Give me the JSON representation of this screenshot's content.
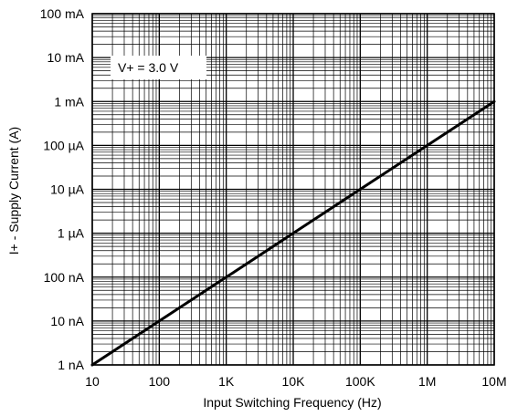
{
  "chart_data": {
    "type": "line",
    "xlabel": "Input Switching Frequency (Hz)",
    "ylabel": "I+ - Supply Current (A)",
    "x_scale": "log",
    "y_scale": "log",
    "xlim": [
      10,
      10000000
    ],
    "ylim": [
      1e-09,
      0.1
    ],
    "grid": true,
    "x_ticks": [
      {
        "value": 10,
        "label": "10"
      },
      {
        "value": 100,
        "label": "100"
      },
      {
        "value": 1000,
        "label": "1K"
      },
      {
        "value": 10000,
        "label": "10K"
      },
      {
        "value": 100000,
        "label": "100K"
      },
      {
        "value": 1000000,
        "label": "1M"
      },
      {
        "value": 10000000,
        "label": "10M"
      }
    ],
    "y_ticks": [
      {
        "value": 1e-09,
        "label": "1 nA"
      },
      {
        "value": 1e-08,
        "label": "10 nA"
      },
      {
        "value": 1e-07,
        "label": "100 nA"
      },
      {
        "value": 1e-06,
        "label": "1 µA"
      },
      {
        "value": 1e-05,
        "label": "10 µA"
      },
      {
        "value": 0.0001,
        "label": "100 µA"
      },
      {
        "value": 0.001,
        "label": "1 mA"
      },
      {
        "value": 0.01,
        "label": "10 mA"
      },
      {
        "value": 0.1,
        "label": "100 mA"
      }
    ],
    "series": [
      {
        "x": [
          10,
          100,
          1000,
          10000,
          100000,
          1000000,
          10000000
        ],
        "y": [
          1e-09,
          1e-08,
          1e-07,
          1e-06,
          1e-05,
          0.0001,
          0.001
        ]
      }
    ],
    "annotations": [
      {
        "text": "V+ = 3.0 V",
        "x": 30,
        "y": 0.01
      }
    ],
    "colors": {
      "line": "#000000",
      "grid": "#000000",
      "background": "#ffffff"
    }
  }
}
